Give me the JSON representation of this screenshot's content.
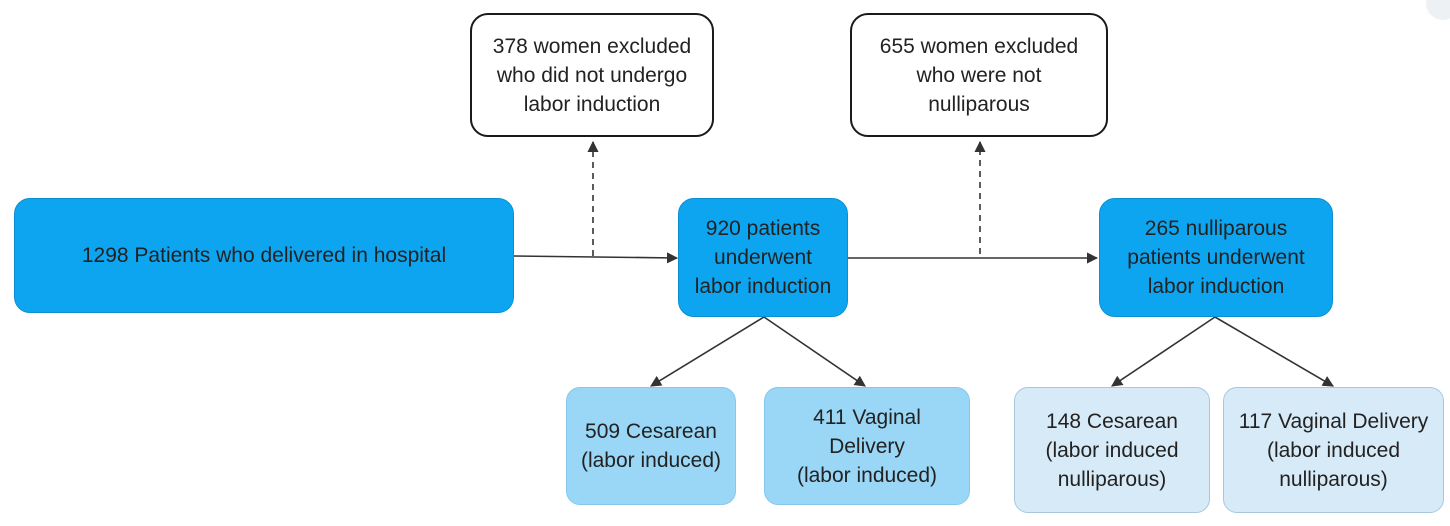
{
  "diagram": {
    "nodes": [
      {
        "id": "excl-induction",
        "kind": "excluded",
        "text": "378 women excluded\nwho did not undergo\nlabor induction"
      },
      {
        "id": "excl-nullip",
        "kind": "excluded",
        "text": "655 women excluded\nwho were not\nnulliparous"
      },
      {
        "id": "delivered",
        "kind": "main",
        "text": "1298 Patients who delivered in hospital"
      },
      {
        "id": "induced",
        "kind": "main",
        "text": "920 patients\nunderwent\nlabor induction"
      },
      {
        "id": "nullip-induced",
        "kind": "main",
        "text": "265 nulliparous\npatients underwent\nlabor induction"
      },
      {
        "id": "cesarean-induced",
        "kind": "outcome",
        "text": "509 Cesarean\n(labor induced)"
      },
      {
        "id": "vaginal-induced",
        "kind": "outcome",
        "text": "411 Vaginal\nDelivery\n(labor induced)"
      },
      {
        "id": "cesarean-nullip",
        "kind": "outcome-nullip",
        "text": "148 Cesarean\n(labor induced\nnulliparous)"
      },
      {
        "id": "vaginal-nullip",
        "kind": "outcome-nullip",
        "text": "117 Vaginal Delivery\n(labor induced\nnulliparous)"
      }
    ],
    "edges": [
      {
        "from": "delivered",
        "to": "induced",
        "style": "solid"
      },
      {
        "from": "delivered",
        "to": "excl-induction",
        "style": "dashed"
      },
      {
        "from": "induced",
        "to": "nullip-induced",
        "style": "solid"
      },
      {
        "from": "induced",
        "to": "excl-nullip",
        "style": "dashed"
      },
      {
        "from": "induced",
        "to": "cesarean-induced",
        "style": "solid"
      },
      {
        "from": "induced",
        "to": "vaginal-induced",
        "style": "solid"
      },
      {
        "from": "nullip-induced",
        "to": "cesarean-nullip",
        "style": "solid"
      },
      {
        "from": "nullip-induced",
        "to": "vaginal-nullip",
        "style": "solid"
      }
    ]
  },
  "colors": {
    "main_fill": "#0ea5f0",
    "outcome_fill": "#9ad6f5",
    "outcome_nullip_fill": "#d7eaf7",
    "excluded_fill": "#ffffff",
    "edge": "#333333"
  }
}
